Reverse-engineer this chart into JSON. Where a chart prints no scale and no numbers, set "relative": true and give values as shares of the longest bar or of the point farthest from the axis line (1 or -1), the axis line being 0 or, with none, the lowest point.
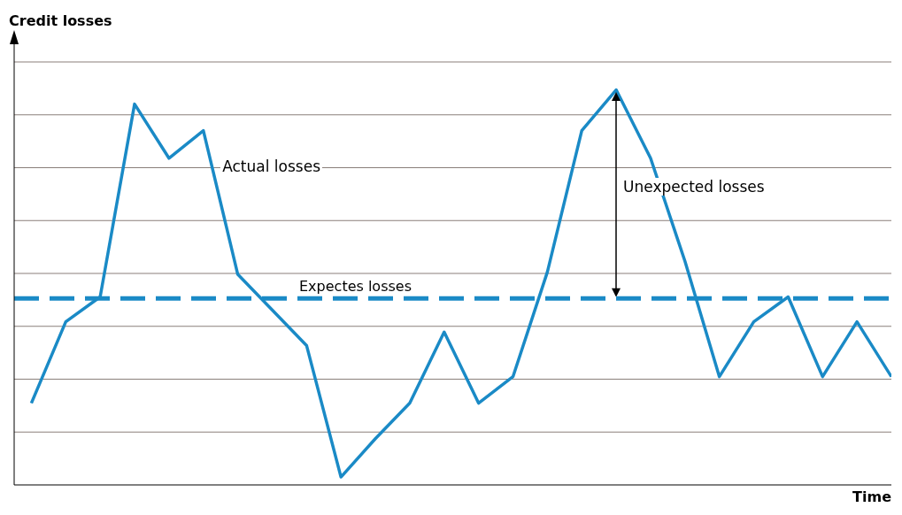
{
  "chart_data": {
    "type": "line",
    "relative": true,
    "xlabel": "Time",
    "ylabel": "Credit losses",
    "categories": [
      null,
      null,
      null,
      null,
      null,
      null,
      null,
      null,
      null,
      null,
      null,
      null,
      null,
      null,
      null,
      null,
      null,
      null,
      null,
      null,
      null,
      null,
      null,
      null,
      null,
      null
    ],
    "series": [
      {
        "color": "#1a8ac6",
        "values": [
          0.207,
          0.413,
          0.476,
          0.964,
          0.827,
          0.897,
          0.533,
          0.443,
          0.353,
          0.02,
          0.117,
          0.207,
          0.387,
          0.207,
          0.274,
          0.539,
          0.897,
          1,
          0.827,
          0.566,
          0.274,
          0.413,
          0.476,
          0.274,
          0.413,
          0.274
        ]
      }
    ],
    "ref_lines": [
      {
        "axis": "y",
        "value": 0.472,
        "label": "Expectes losses",
        "color": "#1a8ac6",
        "line_style": "dashed"
      }
    ],
    "annotations": [
      "Actual losses",
      "Unexpected losses"
    ],
    "grid": "y",
    "marker": "none",
    "line_style": "solid"
  }
}
